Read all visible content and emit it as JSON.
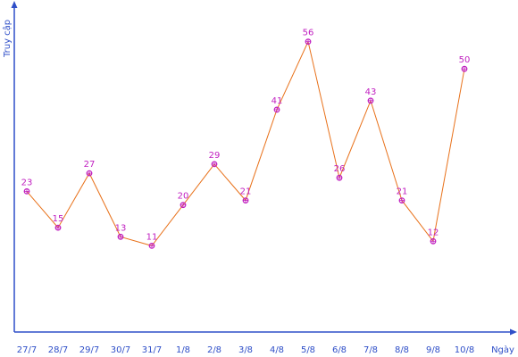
{
  "chart_data": {
    "type": "line",
    "title": "",
    "xlabel": "Ngày",
    "ylabel": "Truy cập",
    "categories": [
      "27/7",
      "28/7",
      "29/7",
      "30/7",
      "31/7",
      "1/8",
      "2/8",
      "3/8",
      "4/8",
      "5/8",
      "6/8",
      "7/8",
      "8/8",
      "9/8",
      "10/8"
    ],
    "series": [
      {
        "values": [
          23,
          15,
          27,
          13,
          11,
          20,
          29,
          21,
          41,
          56,
          26,
          43,
          21,
          12,
          50
        ]
      }
    ],
    "ylim": [
      -8,
      64
    ],
    "grid": false,
    "legend": "none",
    "colors": {
      "axis": "#2f4fc8",
      "line": "#e8711a",
      "marker": "#c01fc0",
      "data_label": "#c01fc0",
      "tick_label": "#2f4fc8"
    }
  }
}
